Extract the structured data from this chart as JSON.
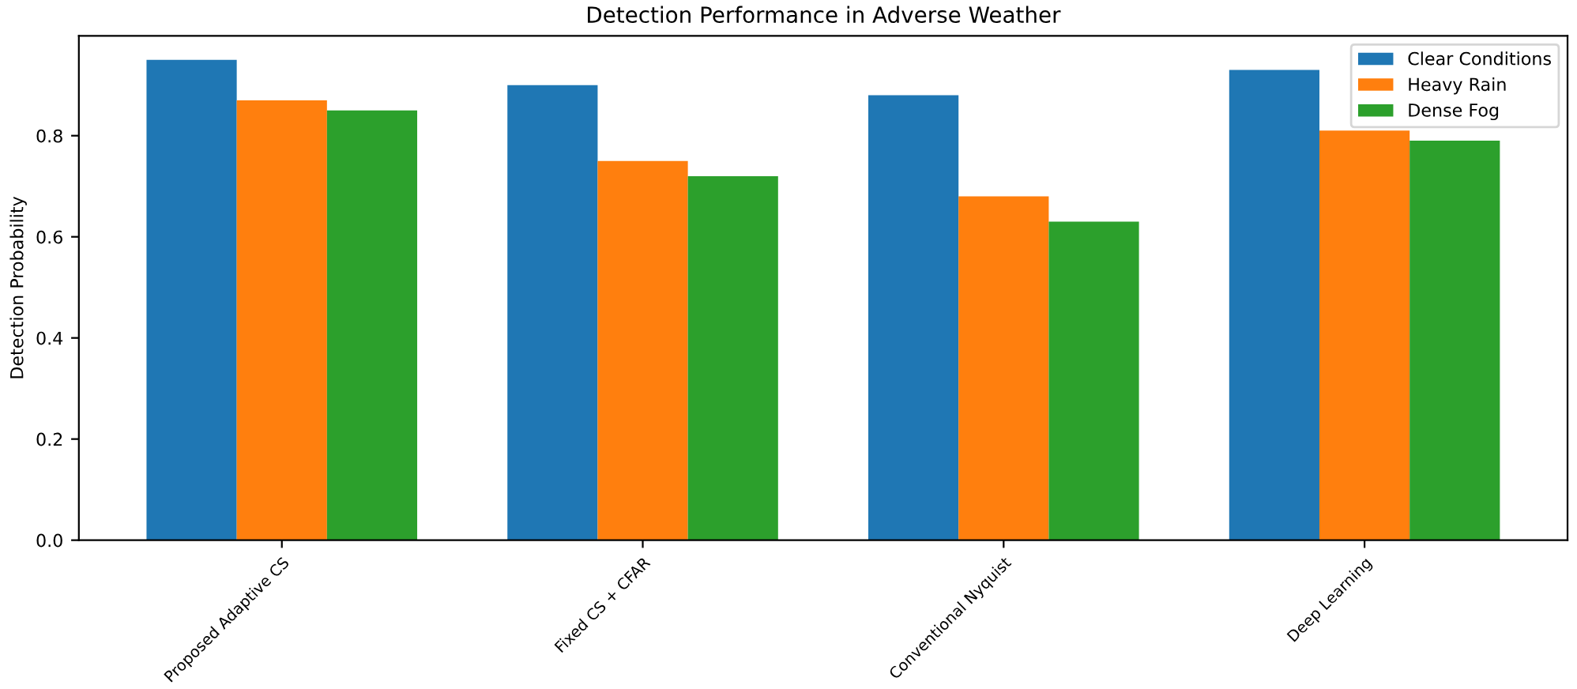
{
  "chart_data": {
    "type": "bar",
    "title": "Detection Performance in Adverse Weather",
    "ylabel": "Detection Probability",
    "categories": [
      "Proposed Adaptive CS",
      "Fixed CS + CFAR",
      "Conventional Nyquist",
      "Deep Learning"
    ],
    "series": [
      {
        "name": "Clear Conditions",
        "color": "#1f77b4",
        "values": [
          0.95,
          0.9,
          0.88,
          0.93
        ]
      },
      {
        "name": "Heavy Rain",
        "color": "#ff7f0e",
        "values": [
          0.87,
          0.75,
          0.68,
          0.81
        ]
      },
      {
        "name": "Dense Fog",
        "color": "#2ca02c",
        "values": [
          0.85,
          0.72,
          0.63,
          0.79
        ]
      }
    ],
    "ylim": [
      0,
      0.9975
    ],
    "yticks": [
      {
        "value": 0,
        "label": "0.0"
      },
      0.2,
      0.4,
      0.6,
      0.8
    ],
    "legend": "top right",
    "grid": false
  }
}
